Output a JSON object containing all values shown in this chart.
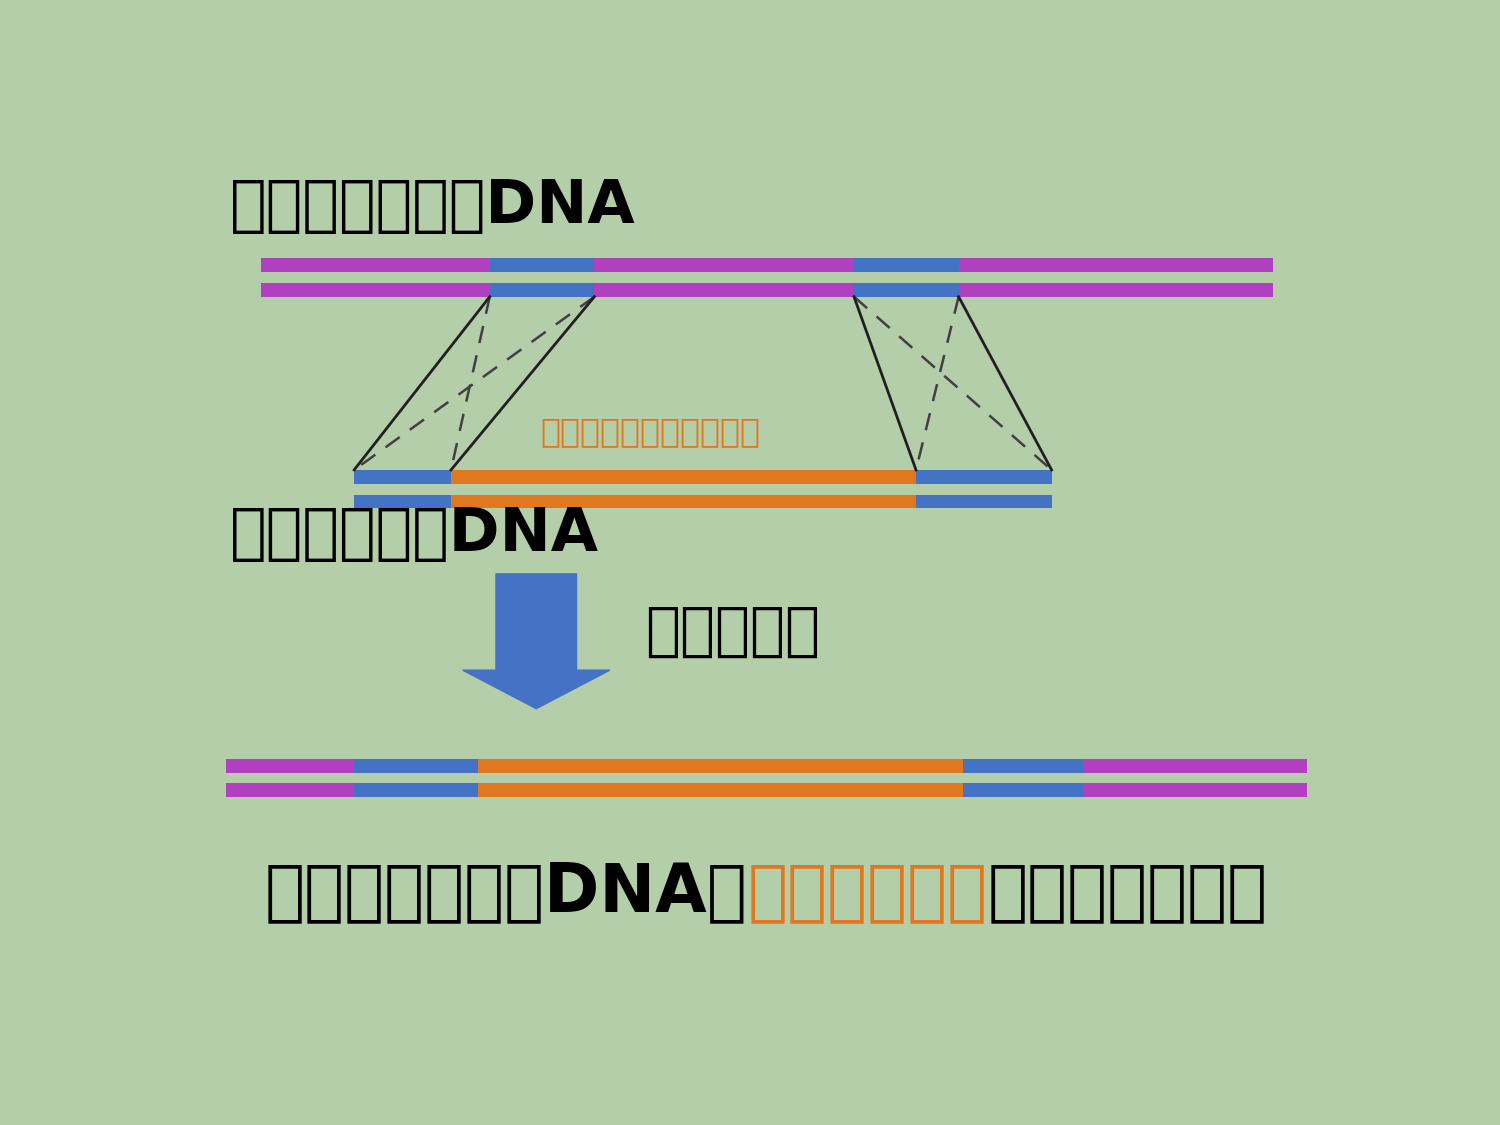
{
  "bg_color": "#b5ceaa",
  "title_dna1": "もともとあったDNA",
  "title_dna2": "外から入れたDNA",
  "label_gene": "もともとなかった遺伝子",
  "label_arrow": "相同組換え",
  "result_parts": [
    "もともとあったDNAに",
    "新たな遺伝子",
    "が組みこまれた"
  ],
  "result_colors": [
    "#000000",
    "#e07820",
    "#000000"
  ],
  "purple": "#b040c0",
  "blue": "#4472c4",
  "orange": "#e07820",
  "arrow_color": "#4472c4",
  "dashed_color": "#404040",
  "solid_color": "#202020",
  "gene_label_color": "#e07820"
}
